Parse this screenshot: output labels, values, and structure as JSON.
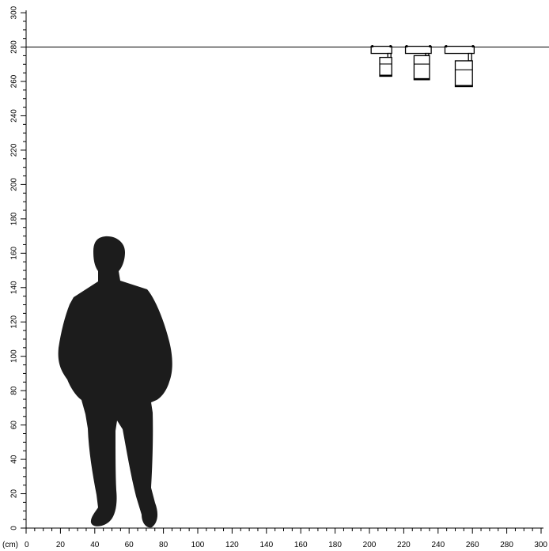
{
  "figure": {
    "unit_label": "(cm)",
    "x_axis": {
      "min": 0,
      "max": 300,
      "major_step": 20,
      "minor_step": 5,
      "tick_labels": [
        "0",
        "20",
        "40",
        "60",
        "80",
        "100",
        "120",
        "140",
        "160",
        "180",
        "200",
        "220",
        "240",
        "260",
        "280",
        "300"
      ]
    },
    "y_axis": {
      "min": 0,
      "max": 300,
      "major_step": 20,
      "minor_step": 5,
      "tick_labels": [
        "0",
        "20",
        "40",
        "60",
        "80",
        "100",
        "120",
        "140",
        "160",
        "180",
        "200",
        "220",
        "240",
        "260",
        "280",
        "300"
      ]
    },
    "ceiling_height_cm": 280,
    "colors": {
      "ink": "#000000",
      "silhouette": "#1c1c1c",
      "background": "#ffffff"
    },
    "silhouette": {
      "icon": "standing-man-silhouette",
      "height_cm": 170
    },
    "fixtures": [
      {
        "name": "track-spotlight-small",
        "track_x_cm": [
          201,
          213
        ],
        "body_x_cm": [
          206,
          213
        ],
        "body_y_cm": [
          263,
          274
        ]
      },
      {
        "name": "track-spotlight-medium",
        "track_x_cm": [
          221,
          236
        ],
        "body_x_cm": [
          226,
          235
        ],
        "body_y_cm": [
          261,
          275
        ]
      },
      {
        "name": "track-spotlight-large",
        "track_x_cm": [
          244,
          261
        ],
        "body_x_cm": [
          250,
          260
        ],
        "body_y_cm": [
          257,
          272
        ]
      }
    ]
  }
}
